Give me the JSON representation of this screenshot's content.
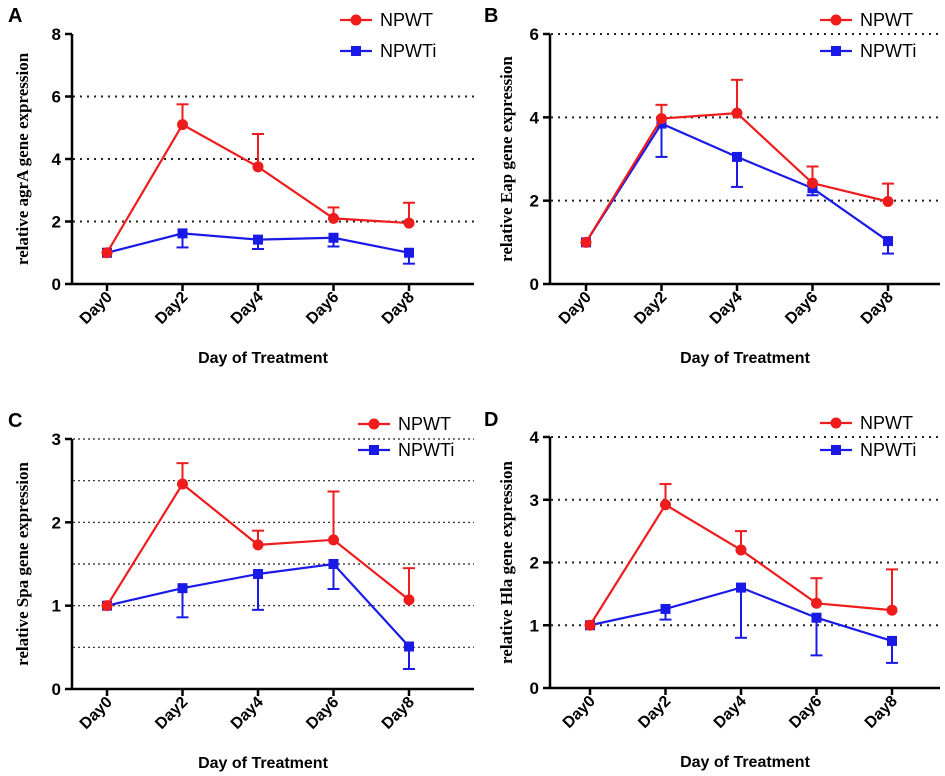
{
  "colors": {
    "npwt": "#ee1c1c",
    "npwti": "#1a1ae6"
  },
  "chart_data": [
    {
      "panel": "A",
      "type": "line",
      "categories": [
        "Day0",
        "Day2",
        "Day4",
        "Day6",
        "Day8"
      ],
      "xlabel": "Day of Treatment",
      "ylabel": "relative agrA gene expression",
      "ylim": [
        0,
        8
      ],
      "yticks": [
        0,
        2,
        4,
        6,
        8
      ],
      "gridlines": [
        2,
        4,
        6
      ],
      "series": [
        {
          "name": "NPWT",
          "marker": "circle",
          "values": [
            1.0,
            5.1,
            3.75,
            2.1,
            1.95
          ],
          "err_up": [
            0,
            0.65,
            1.05,
            0.35,
            0.65
          ],
          "err_down": [
            0,
            0,
            0,
            0,
            0
          ]
        },
        {
          "name": "NPWTi",
          "marker": "square",
          "values": [
            1.0,
            1.62,
            1.42,
            1.48,
            1.0
          ],
          "err_up": [
            0,
            0,
            0,
            0,
            0
          ],
          "err_down": [
            0,
            0.45,
            0.3,
            0.28,
            0.35
          ]
        }
      ]
    },
    {
      "panel": "B",
      "type": "line",
      "categories": [
        "Day0",
        "Day2",
        "Day4",
        "Day6",
        "Day8"
      ],
      "xlabel": "Day of Treatment",
      "ylabel": "relative Eap gene expression",
      "ylim": [
        0,
        6
      ],
      "yticks": [
        0,
        2,
        4,
        6
      ],
      "gridlines": [
        2,
        4,
        6
      ],
      "series": [
        {
          "name": "NPWT",
          "marker": "circle",
          "values": [
            1.0,
            3.97,
            4.1,
            2.42,
            1.98
          ],
          "err_up": [
            0,
            0.33,
            0.8,
            0.4,
            0.43
          ],
          "err_down": [
            0,
            0,
            0,
            0,
            0
          ]
        },
        {
          "name": "NPWTi",
          "marker": "square",
          "values": [
            1.0,
            3.85,
            3.05,
            2.3,
            1.03
          ],
          "err_up": [
            0,
            0,
            0,
            0,
            0
          ],
          "err_down": [
            0,
            0.8,
            0.72,
            0.17,
            0.3
          ]
        }
      ]
    },
    {
      "panel": "C",
      "type": "line",
      "categories": [
        "Day0",
        "Day2",
        "Day4",
        "Day6",
        "Day8"
      ],
      "xlabel": "Day of Treatment",
      "ylabel": "relative Spa gene expression",
      "ylim": [
        0,
        3
      ],
      "yticks": [
        0,
        1,
        2,
        3
      ],
      "gridlines": [
        0.5,
        1,
        1.5,
        2,
        2.5,
        3
      ],
      "series": [
        {
          "name": "NPWT",
          "marker": "circle",
          "values": [
            1.0,
            2.46,
            1.73,
            1.79,
            1.07
          ],
          "err_up": [
            0,
            0.25,
            0.17,
            0.58,
            0.38
          ],
          "err_down": [
            0,
            0,
            0,
            0,
            0
          ]
        },
        {
          "name": "NPWTi",
          "marker": "square",
          "values": [
            1.0,
            1.21,
            1.38,
            1.5,
            0.51
          ],
          "err_up": [
            0,
            0,
            0,
            0,
            0
          ],
          "err_down": [
            0,
            0.35,
            0.43,
            0.3,
            0.27
          ]
        }
      ]
    },
    {
      "panel": "D",
      "type": "line",
      "categories": [
        "Day0",
        "Day2",
        "Day4",
        "Day6",
        "Day8"
      ],
      "xlabel": "Day of Treatment",
      "ylabel": "relative Hla gene expression",
      "ylim": [
        0,
        4
      ],
      "yticks": [
        0,
        1,
        2,
        3,
        4
      ],
      "gridlines": [
        1,
        2,
        3,
        4
      ],
      "series": [
        {
          "name": "NPWT",
          "marker": "circle",
          "values": [
            1.0,
            2.92,
            2.2,
            1.35,
            1.24
          ],
          "err_up": [
            0,
            0.33,
            0.3,
            0.4,
            0.65
          ],
          "err_down": [
            0,
            0,
            0,
            0,
            0
          ]
        },
        {
          "name": "NPWTi",
          "marker": "square",
          "values": [
            1.0,
            1.26,
            1.6,
            1.12,
            0.75
          ],
          "err_up": [
            0,
            0,
            0,
            0,
            0
          ],
          "err_down": [
            0,
            0.17,
            0.8,
            0.6,
            0.35
          ]
        }
      ]
    }
  ]
}
